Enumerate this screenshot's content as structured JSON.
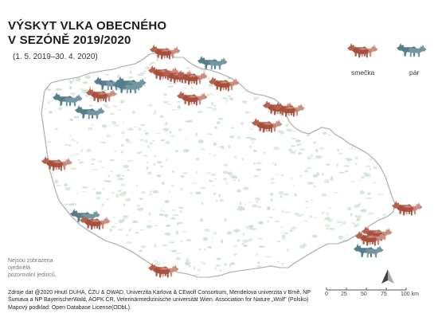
{
  "title_line1": "VÝSKYT VLKA OBECNÉHO",
  "title_line2": "V SEZÓNĚ 2019/2020",
  "subtitle": "(1. 5. 2019–30. 4. 2020)",
  "legend": {
    "pack_label": "smečka",
    "pair_label": "pár",
    "pack_color": "#b5614f",
    "pair_color": "#557d8c"
  },
  "colors": {
    "forest": "#cde3d2",
    "border": "#b0b0b0",
    "land": "#ffffff"
  },
  "note_line1": "Nejsou zobrazena ojedinělá",
  "note_line2": "pozorování jedinců.",
  "source": {
    "line1": "Zdroje dat @2020 Hnutí DUHA, ČZU & OWAD, Univerzita Karlova & CEwolf Consortium, Mendelova univerzita v Brně, NP",
    "line2": "Šumava a NP BayerischerWald, AOPK ČR, Veterinärmedizinische universität Wien. Association for Nature „Wolf\" (Polsko)",
    "line3": "Mapový podklad: Open Database License(ODbL)."
  },
  "scale": {
    "ticks": [
      "0",
      "25",
      "50",
      "75",
      "100 km"
    ]
  },
  "north_arrow_icon": "north-arrow-icon",
  "wolf_icon": "wolf-icon",
  "wolf_groups": [
    {
      "type": "pack"
    },
    {
      "type": "pair"
    },
    {
      "type": "pair"
    },
    {
      "type": "pair"
    },
    {
      "type": "pack"
    },
    {
      "type": "pack"
    },
    {
      "type": "pack"
    },
    {
      "type": "pack"
    },
    {
      "type": "pair"
    },
    {
      "type": "pair"
    },
    {
      "type": "pack"
    },
    {
      "type": "pair"
    },
    {
      "type": "pack"
    },
    {
      "type": "pack"
    },
    {
      "type": "pack"
    },
    {
      "type": "pack"
    },
    {
      "type": "pack"
    },
    {
      "type": "pair"
    },
    {
      "type": "pack"
    },
    {
      "type": "pack"
    },
    {
      "type": "pack"
    },
    {
      "type": "pack"
    },
    {
      "type": "pair"
    },
    {
      "type": "pack"
    }
  ]
}
